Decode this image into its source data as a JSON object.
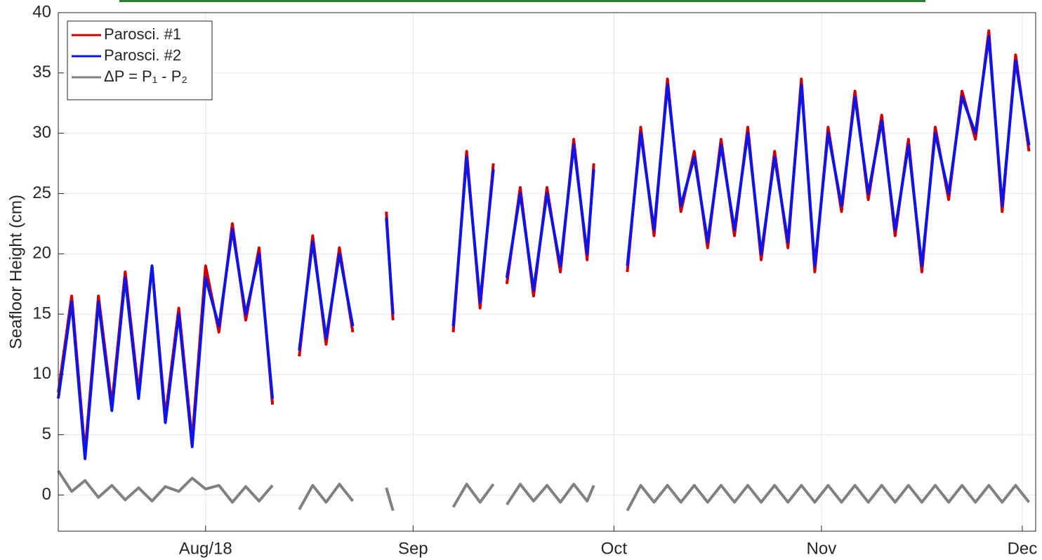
{
  "chart_data": {
    "type": "line",
    "ylabel": "Seafloor Height (cm)",
    "x": [
      "2018-07-10",
      "2018-07-12",
      "2018-07-14",
      "2018-07-16",
      "2018-07-18",
      "2018-07-20",
      "2018-07-22",
      "2018-07-24",
      "2018-07-26",
      "2018-07-28",
      "2018-07-30",
      "2018-08-01",
      "2018-08-03",
      "2018-08-05",
      "2018-08-07",
      "2018-08-09",
      "2018-08-11",
      "2018-08-13",
      "2018-08-15",
      "2018-08-17",
      "2018-08-19",
      "2018-08-21",
      "2018-08-23",
      "2018-08-25",
      "2018-08-28",
      "2018-08-29",
      "2018-09-01",
      "2018-09-07",
      "2018-09-09",
      "2018-09-11",
      "2018-09-13",
      "2018-09-14",
      "2018-09-15",
      "2018-09-17",
      "2018-09-19",
      "2018-09-21",
      "2018-09-23",
      "2018-09-25",
      "2018-09-27",
      "2018-09-28",
      "2018-09-30",
      "2018-10-03",
      "2018-10-05",
      "2018-10-07",
      "2018-10-09",
      "2018-10-11",
      "2018-10-13",
      "2018-10-15",
      "2018-10-17",
      "2018-10-19",
      "2018-10-21",
      "2018-10-23",
      "2018-10-25",
      "2018-10-27",
      "2018-10-29",
      "2018-10-31",
      "2018-11-02",
      "2018-11-04",
      "2018-11-06",
      "2018-11-08",
      "2018-11-10",
      "2018-11-12",
      "2018-11-14",
      "2018-11-16",
      "2018-11-18",
      "2018-11-20",
      "2018-11-22",
      "2018-11-24",
      "2018-11-26",
      "2018-11-28",
      "2018-11-30",
      "2018-12-02"
    ],
    "series": [
      {
        "name": "Parosci. #1",
        "color": "#cc0000",
        "values": [
          8.5,
          16.5,
          3.5,
          16.5,
          7.5,
          18.5,
          8.5,
          19,
          6.5,
          15.5,
          4.5,
          19,
          13.5,
          22.5,
          14.5,
          20.5,
          7.5,
          null,
          11.5,
          21.5,
          12.5,
          20.5,
          13.5,
          null,
          23.5,
          14.5,
          null,
          13.5,
          28.5,
          15.5,
          27.5,
          null,
          17.5,
          25.5,
          16.5,
          25.5,
          18.5,
          29.5,
          19.5,
          27.5,
          null,
          18.5,
          30.5,
          21.5,
          34.5,
          23.5,
          28.5,
          20.5,
          29.5,
          21.5,
          30.5,
          19.5,
          28.5,
          20.5,
          34.5,
          18.5,
          30.5,
          23.5,
          33.5,
          24.5,
          31.5,
          21.5,
          29.5,
          18.5,
          30.5,
          24.5,
          33.5,
          29.5,
          38.5,
          23.5,
          36.5,
          28.5
        ]
      },
      {
        "name": "Parosci. #2",
        "color": "#0a14f0",
        "values": [
          8,
          16,
          3,
          16,
          7,
          18,
          8,
          19,
          6,
          15,
          4,
          18,
          14,
          22,
          15,
          20,
          8,
          null,
          12,
          21,
          13,
          20,
          14,
          null,
          23,
          15,
          null,
          14,
          28,
          16,
          27,
          null,
          18,
          25,
          17,
          25,
          19,
          29,
          20,
          27,
          null,
          19,
          30,
          22,
          34,
          24,
          28,
          21,
          29,
          22,
          30,
          20,
          28,
          21,
          34,
          19,
          30,
          24,
          33,
          25,
          31,
          22,
          29,
          19,
          30,
          25,
          33,
          30,
          38,
          24,
          36,
          29
        ]
      },
      {
        "name": "ΔP = P₁ - P₂",
        "color": "#808080",
        "values": [
          2.0,
          0.3,
          1.2,
          -0.2,
          0.8,
          -0.4,
          0.6,
          -0.5,
          0.7,
          0.3,
          1.4,
          0.5,
          0.8,
          -0.6,
          0.7,
          -0.5,
          0.8,
          null,
          -1.2,
          0.8,
          -0.6,
          0.9,
          -0.5,
          null,
          0.6,
          -1.3,
          null,
          -1.0,
          0.9,
          -0.6,
          0.9,
          null,
          -0.8,
          0.9,
          -0.5,
          0.8,
          -0.6,
          0.9,
          -0.5,
          0.8,
          null,
          -1.3,
          0.8,
          -0.6,
          0.8,
          -0.6,
          0.8,
          -0.6,
          0.8,
          -0.6,
          0.8,
          -0.6,
          0.8,
          -0.6,
          0.8,
          -0.6,
          0.8,
          -0.6,
          0.8,
          -0.6,
          0.8,
          -0.6,
          0.8,
          -0.6,
          0.8,
          -0.6,
          0.8,
          -0.6,
          0.8,
          -0.6,
          0.8,
          -0.6
        ]
      }
    ],
    "xlim": [
      "2018-07-10",
      "2018-12-03"
    ],
    "xticks": [
      {
        "value": "2018-08-01",
        "label": "Aug/18"
      },
      {
        "value": "2018-09-01",
        "label": "Sep"
      },
      {
        "value": "2018-10-01",
        "label": "Oct"
      },
      {
        "value": "2018-11-01",
        "label": "Nov"
      },
      {
        "value": "2018-12-01",
        "label": "Dec"
      }
    ],
    "ylim": [
      -3,
      40
    ],
    "yticks": [
      0,
      5,
      10,
      15,
      20,
      25,
      30,
      35,
      40
    ],
    "grid": true,
    "legend": "upper-left"
  }
}
